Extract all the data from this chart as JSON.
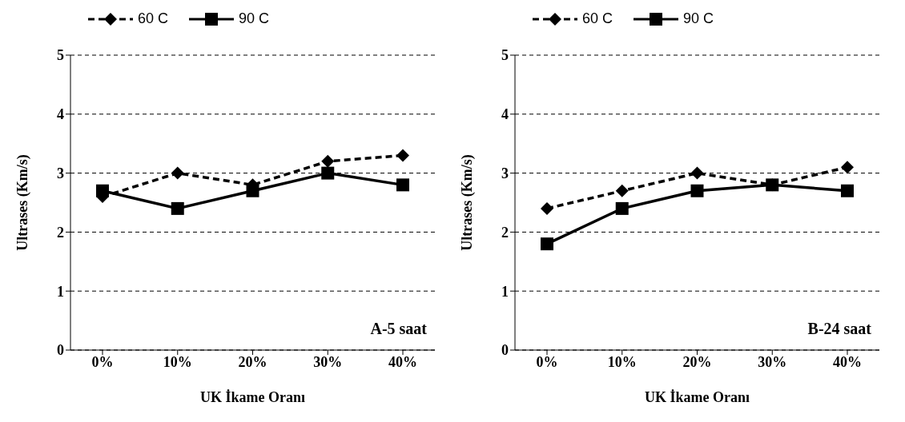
{
  "chart_data": [
    {
      "type": "line",
      "categories": [
        "0%",
        "10%",
        "20%",
        "30%",
        "40%"
      ],
      "xlabel": "UK İkame Oranı",
      "ylabel": "Ultrases (Km/s)",
      "ylim": [
        0,
        5
      ],
      "yticks": [
        0,
        1,
        2,
        3,
        4,
        5
      ],
      "grid": "y",
      "legend": "top",
      "annotations": [
        "A-5 saat"
      ],
      "series": [
        {
          "name": "60 C",
          "color": "#000000",
          "marker": "diamond",
          "line_style": "dashed",
          "values": [
            2.6,
            3.0,
            2.8,
            3.2,
            3.3
          ]
        },
        {
          "name": "90 C",
          "color": "#000000",
          "marker": "square",
          "line_style": "solid",
          "values": [
            2.7,
            2.4,
            2.7,
            3.0,
            2.8
          ]
        }
      ]
    },
    {
      "type": "line",
      "categories": [
        "0%",
        "10%",
        "20%",
        "30%",
        "40%"
      ],
      "xlabel": "UK İkame Oranı",
      "ylabel": "Ultrases (Km/s)",
      "ylim": [
        0,
        5
      ],
      "yticks": [
        0,
        1,
        2,
        3,
        4,
        5
      ],
      "grid": "y",
      "legend": "top",
      "annotations": [
        "B-24 saat"
      ],
      "series": [
        {
          "name": "60 C",
          "color": "#000000",
          "marker": "diamond",
          "line_style": "dashed",
          "values": [
            2.4,
            2.7,
            3.0,
            2.8,
            3.1
          ]
        },
        {
          "name": "90 C",
          "color": "#000000",
          "marker": "square",
          "line_style": "solid",
          "values": [
            1.8,
            2.4,
            2.7,
            2.8,
            2.7
          ]
        }
      ]
    }
  ]
}
